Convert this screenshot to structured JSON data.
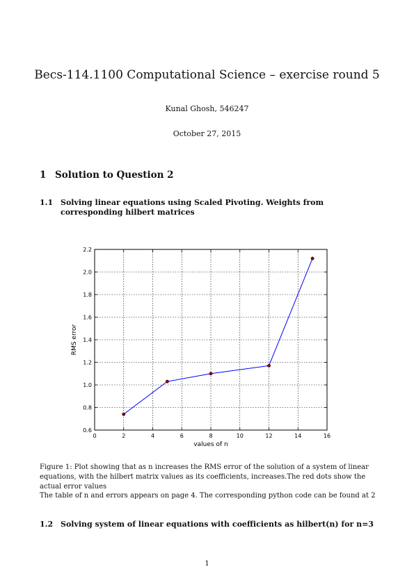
{
  "document": {
    "title": "Becs-114.1100 Computational Science – exercise round 5",
    "author": "Kunal Ghosh, 546247",
    "date": "October 27, 2015",
    "page_number": "1"
  },
  "section1": {
    "number": "1",
    "title": "Solution to Question 2"
  },
  "subsection1": {
    "number": "1.1",
    "title": "Solving linear equations using Scaled Pivoting. Weights from corresponding hilbert matrices"
  },
  "figure1": {
    "caption": "Figure 1: Plot showing that as n increases the RMS error of the solution of a system of linear equations, with the hilbert matrix values as its coefficients, increases.The red dots show the actual error values"
  },
  "paragraph1": "The table of n and errors appears on page 4. The corresponding python code can be found at 2",
  "subsection2": {
    "number": "1.2",
    "title": "Solving system of linear equations with coefficients as hilbert(n) for n=3"
  },
  "chart_data": {
    "type": "line",
    "x": [
      2,
      5,
      8,
      12,
      15
    ],
    "y": [
      0.74,
      1.03,
      1.1,
      1.17,
      2.12
    ],
    "xlabel": "values of n",
    "ylabel": "RMS error",
    "xlim": [
      0,
      16
    ],
    "ylim": [
      0.6,
      2.2
    ],
    "xticks": [
      0,
      2,
      4,
      6,
      8,
      10,
      12,
      14,
      16
    ],
    "yticks": [
      0.6,
      0.8,
      1.0,
      1.2,
      1.4,
      1.6,
      1.8,
      2.0,
      2.2
    ],
    "xtick_labels": [
      "0",
      "2",
      "4",
      "6",
      "8",
      "10",
      "12",
      "14",
      "16"
    ],
    "ytick_labels": [
      "0.6",
      "0.8",
      "1.0",
      "1.2",
      "1.4",
      "1.6",
      "1.8",
      "2.0",
      "2.2"
    ],
    "grid": true,
    "line_color": "#0000ff",
    "marker_color": "#8b0000"
  }
}
